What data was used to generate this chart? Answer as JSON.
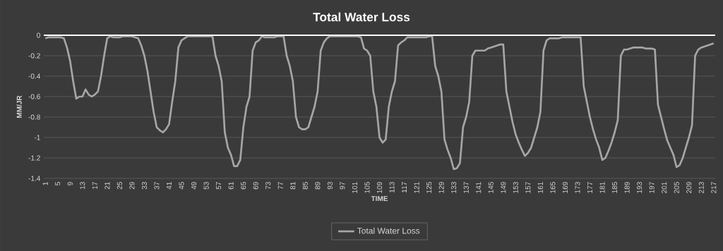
{
  "chart_data": {
    "type": "line",
    "title": "Total Water Loss",
    "xlabel": "TIME",
    "ylabel": "MM/JR",
    "categories": [
      "1",
      null,
      null,
      null,
      "5",
      null,
      null,
      null,
      "9",
      null,
      null,
      null,
      "13",
      null,
      null,
      null,
      "17",
      null,
      null,
      null,
      "21",
      null,
      null,
      null,
      "25",
      null,
      null,
      null,
      "29",
      null,
      null,
      null,
      "33",
      null,
      null,
      null,
      "37",
      null,
      null,
      null,
      "41",
      null,
      null,
      null,
      "45",
      null,
      null,
      null,
      "49",
      null,
      null,
      null,
      "53",
      null,
      null,
      null,
      "57",
      null,
      null,
      null,
      "61",
      null,
      null,
      null,
      "65",
      null,
      null,
      null,
      "69",
      null,
      null,
      null,
      "73",
      null,
      null,
      null,
      "77",
      null,
      null,
      null,
      "81",
      null,
      null,
      null,
      "85",
      null,
      null,
      null,
      "89",
      null,
      null,
      null,
      "93",
      null,
      null,
      null,
      "97",
      null,
      null,
      null,
      "101",
      null,
      null,
      null,
      "105",
      null,
      null,
      null,
      "109",
      null,
      null,
      null,
      "113",
      null,
      null,
      null,
      "117",
      null,
      null,
      null,
      "121",
      null,
      null,
      null,
      "125",
      null,
      null,
      null,
      "129",
      null,
      null,
      null,
      "133",
      null,
      null,
      null,
      "137",
      null,
      null,
      null,
      "141",
      null,
      null,
      null,
      "145",
      null,
      null,
      null,
      "149",
      null,
      null,
      null,
      "153",
      null,
      null,
      null,
      "157",
      null,
      null,
      null,
      "161",
      null,
      null,
      null,
      "165",
      null,
      null,
      null,
      "169",
      null,
      null,
      null,
      "173",
      null,
      null,
      null,
      "177",
      null,
      null,
      null,
      "181",
      null,
      null,
      null,
      "185",
      null,
      null,
      null,
      "189",
      null,
      null,
      null,
      "193",
      null,
      null,
      null,
      "197",
      null,
      null,
      null,
      "201",
      null,
      null,
      null,
      "205",
      null,
      null,
      null,
      "209",
      null,
      null,
      null,
      "213",
      null,
      null,
      null,
      "217"
    ],
    "series": [
      {
        "name": "Total Water Loss",
        "color": "#a6a6a6",
        "values": [
          -0.03,
          -0.02,
          -0.02,
          -0.02,
          -0.02,
          -0.02,
          -0.03,
          -0.12,
          -0.25,
          -0.45,
          -0.62,
          -0.6,
          -0.6,
          -0.53,
          -0.58,
          -0.6,
          -0.58,
          -0.55,
          -0.4,
          -0.2,
          -0.03,
          -0.01,
          -0.02,
          -0.02,
          -0.02,
          -0.01,
          -0.01,
          -0.01,
          -0.01,
          -0.02,
          -0.03,
          -0.1,
          -0.2,
          -0.35,
          -0.55,
          -0.75,
          -0.9,
          -0.93,
          -0.95,
          -0.92,
          -0.87,
          -0.65,
          -0.45,
          -0.12,
          -0.05,
          -0.03,
          -0.01,
          -0.01,
          -0.01,
          -0.01,
          -0.01,
          -0.01,
          -0.01,
          -0.01,
          -0.01,
          -0.2,
          -0.3,
          -0.45,
          -0.95,
          -1.1,
          -1.17,
          -1.28,
          -1.28,
          -1.22,
          -0.9,
          -0.7,
          -0.6,
          -0.15,
          -0.07,
          -0.05,
          -0.01,
          -0.02,
          -0.02,
          -0.02,
          -0.02,
          -0.01,
          -0.01,
          -0.01,
          -0.2,
          -0.3,
          -0.45,
          -0.8,
          -0.9,
          -0.92,
          -0.92,
          -0.9,
          -0.8,
          -0.7,
          -0.55,
          -0.15,
          -0.07,
          -0.03,
          -0.01,
          -0.01,
          -0.01,
          -0.01,
          -0.01,
          -0.01,
          -0.01,
          -0.01,
          -0.01,
          -0.01,
          -0.02,
          -0.13,
          -0.15,
          -0.2,
          -0.55,
          -0.7,
          -1.0,
          -1.05,
          -1.02,
          -0.7,
          -0.55,
          -0.45,
          -0.1,
          -0.07,
          -0.05,
          -0.02,
          -0.02,
          -0.02,
          -0.02,
          -0.02,
          -0.02,
          -0.02,
          -0.01,
          -0.01,
          -0.3,
          -0.4,
          -0.55,
          -1.02,
          -1.12,
          -1.2,
          -1.31,
          -1.3,
          -1.25,
          -0.9,
          -0.8,
          -0.65,
          -0.2,
          -0.15,
          -0.15,
          -0.15,
          -0.15,
          -0.13,
          -0.12,
          -0.11,
          -0.1,
          -0.09,
          -0.09,
          -0.55,
          -0.7,
          -0.85,
          -0.97,
          -1.05,
          -1.12,
          -1.18,
          -1.15,
          -1.1,
          -1.0,
          -0.9,
          -0.75,
          -0.15,
          -0.05,
          -0.03,
          -0.03,
          -0.03,
          -0.03,
          -0.02,
          -0.02,
          -0.02,
          -0.02,
          -0.02,
          -0.02,
          -0.02,
          -0.5,
          -0.65,
          -0.8,
          -0.92,
          -1.02,
          -1.1,
          -1.22,
          -1.2,
          -1.13,
          -1.05,
          -0.95,
          -0.83,
          -0.2,
          -0.14,
          -0.14,
          -0.13,
          -0.12,
          -0.12,
          -0.12,
          -0.12,
          -0.13,
          -0.13,
          -0.13,
          -0.14,
          -0.68,
          -0.8,
          -0.92,
          -1.03,
          -1.1,
          -1.17,
          -1.29,
          -1.27,
          -1.2,
          -1.1,
          -1.0,
          -0.88,
          -0.2,
          -0.14,
          -0.12,
          -0.11,
          -0.1,
          -0.09,
          -0.08
        ]
      }
    ],
    "ylim": [
      -1.4,
      0
    ],
    "yticks": [
      -1.4,
      -1.2,
      -1,
      -0.8,
      -0.6,
      -0.4,
      -0.2,
      0
    ],
    "grid": "y",
    "legend": "bottom",
    "marker": "none",
    "line_style": "solid"
  }
}
